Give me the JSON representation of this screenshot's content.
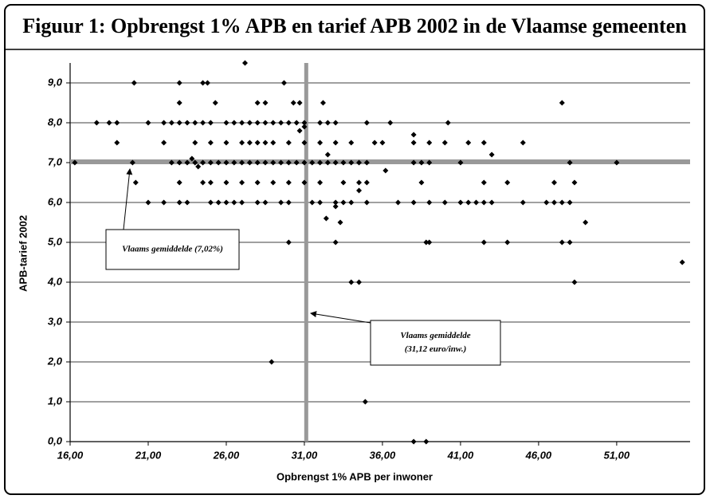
{
  "chart_data": {
    "type": "scatter",
    "title": "Figuur 1: Opbrengst 1% APB en tarief APB 2002 in de Vlaamse gemeenten",
    "x_label": "Opbrengst 1% APB per inwoner",
    "y_label": "APB-tarief 2002",
    "xlim": [
      16,
      55.7
    ],
    "ylim": [
      0,
      9.5
    ],
    "xticks": [
      {
        "value": 16,
        "label": "16,00"
      },
      {
        "value": 21,
        "label": "21,00"
      },
      {
        "value": 26,
        "label": "26,00"
      },
      {
        "value": 31,
        "label": "31,00"
      },
      {
        "value": 36,
        "label": "36,00"
      },
      {
        "value": 41,
        "label": "41,00"
      },
      {
        "value": 46,
        "label": "46,00"
      },
      {
        "value": 51,
        "label": "51,00"
      }
    ],
    "yticks": [
      {
        "value": 0,
        "label": "0,0"
      },
      {
        "value": 1,
        "label": "1,0"
      },
      {
        "value": 2,
        "label": "2,0"
      },
      {
        "value": 3,
        "label": "3,0"
      },
      {
        "value": 4,
        "label": "4,0"
      },
      {
        "value": 5,
        "label": "5,0"
      },
      {
        "value": 6,
        "label": "6,0"
      },
      {
        "value": 7,
        "label": "7,0"
      },
      {
        "value": 8,
        "label": "8,0"
      },
      {
        "value": 9,
        "label": "9,0"
      }
    ],
    "grid": true,
    "color": "#000000",
    "ref_color": "#999999",
    "hline": 7.02,
    "vline": 31.12,
    "annotations": [
      {
        "lines": [
          "Vlaams gemiddelde (7,02%)"
        ]
      },
      {
        "lines": [
          "Vlaams gemiddelde",
          "(31,12 euro/inw.)"
        ]
      }
    ],
    "x": [
      16.3,
      20,
      22.5,
      23,
      23.5,
      24,
      24.5,
      25,
      25.5,
      26,
      26.5,
      27,
      27.5,
      28,
      28.5,
      29,
      29.5,
      30,
      30.5,
      31,
      31.5,
      32,
      32.5,
      33,
      33.5,
      34,
      34.5,
      35,
      38,
      38.5,
      39,
      41,
      48,
      51,
      17.7,
      18.5,
      19,
      21,
      22,
      22.5,
      23,
      23.5,
      24,
      24.5,
      25,
      26,
      26.5,
      27,
      27.5,
      28,
      28.5,
      29,
      29.5,
      30,
      30.5,
      31,
      32,
      32.5,
      33,
      35,
      36.5,
      40.2,
      21,
      22,
      23,
      23.5,
      25,
      25.5,
      26,
      26.5,
      27,
      28,
      28.5,
      29.5,
      30,
      31.5,
      32,
      33,
      33.5,
      34,
      35,
      37,
      38,
      39,
      40,
      41,
      41.5,
      42,
      42.5,
      43,
      45,
      46.5,
      47,
      47.5,
      48,
      20.2,
      23,
      24.5,
      25,
      26,
      27,
      28,
      29,
      30,
      31,
      32,
      33.5,
      34.5,
      35,
      38.5,
      42.5,
      44,
      47,
      48.3,
      19,
      22,
      24,
      25,
      26,
      27,
      27.5,
      28,
      28.5,
      29,
      30,
      31,
      32,
      33,
      34,
      35.5,
      36,
      38,
      39,
      41.5,
      42.5,
      45,
      21,
      22,
      24.2,
      30,
      33,
      38.8,
      39,
      42.5,
      44,
      47.5,
      48,
      27.2,
      20.1,
      23,
      24.5,
      24.8,
      29.7,
      23,
      25.3,
      28,
      28.5,
      30.3,
      30.7,
      32.2,
      47.5,
      33,
      33.3,
      32.4,
      34,
      34.5,
      55.2,
      48.3,
      28.9,
      34.9,
      38,
      38.8,
      49,
      31,
      30.7,
      32.5,
      43,
      40,
      34.5,
      36.2,
      38,
      24.2,
      23.8
    ],
    "y": [
      7,
      7,
      7,
      7,
      7,
      7,
      7,
      7,
      7,
      7,
      7,
      7,
      7,
      7,
      7,
      7,
      7,
      7,
      7,
      7,
      7,
      7,
      7,
      7,
      7,
      7,
      7,
      7,
      7,
      7,
      7,
      7,
      7,
      7,
      8,
      8,
      8,
      8,
      8,
      8,
      8,
      8,
      8,
      8,
      8,
      8,
      8,
      8,
      8,
      8,
      8,
      8,
      8,
      8,
      8,
      8,
      8,
      8,
      8,
      8,
      8,
      8,
      6,
      6,
      6,
      6,
      6,
      6,
      6,
      6,
      6,
      6,
      6,
      6,
      6,
      6,
      6,
      6,
      6,
      6,
      6,
      6,
      6,
      6,
      6,
      6,
      6,
      6,
      6,
      6,
      6,
      6,
      6,
      6,
      6,
      6.5,
      6.5,
      6.5,
      6.5,
      6.5,
      6.5,
      6.5,
      6.5,
      6.5,
      6.5,
      6.5,
      6.5,
      6.5,
      6.5,
      6.5,
      6.5,
      6.5,
      6.5,
      6.5,
      7.5,
      7.5,
      7.5,
      7.5,
      7.5,
      7.5,
      7.5,
      7.5,
      7.5,
      7.5,
      7.5,
      7.5,
      7.5,
      7.5,
      7.5,
      7.5,
      7.5,
      7.5,
      7.5,
      7.5,
      7.5,
      7.5,
      5,
      5,
      5,
      5,
      5,
      5,
      5,
      5,
      5,
      5,
      5,
      9.5,
      9,
      9,
      9,
      9,
      9,
      8.5,
      8.5,
      8.5,
      8.5,
      8.5,
      8.5,
      8.5,
      8.5,
      5.9,
      5.5,
      5.6,
      4,
      4,
      4.5,
      4,
      2,
      1,
      0,
      0,
      5.5,
      7.9,
      7.8,
      7.2,
      7.2,
      7.5,
      6.3,
      6.8,
      7.7,
      6.9,
      7.1
    ]
  }
}
